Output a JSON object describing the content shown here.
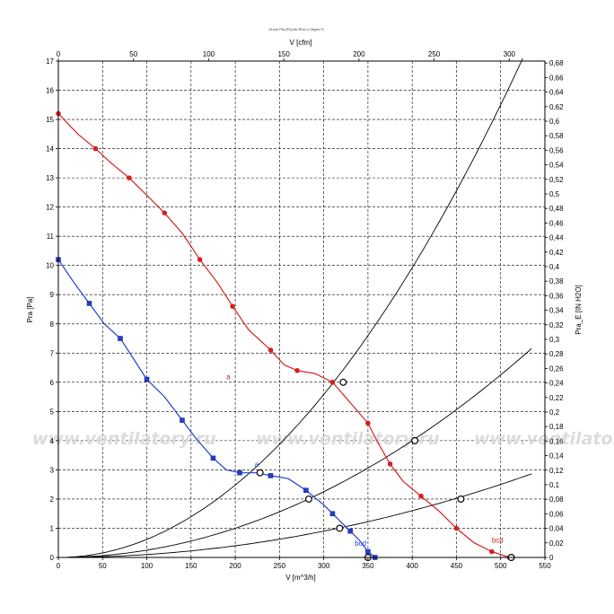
{
  "chart_data": {
    "type": "line",
    "title": "Druck Pra [Pa] für Rho=1.2kg/m^3",
    "xlabel": "V [m^3/h]",
    "x2label": "V [cfm]",
    "ylabel": "Pra [Pa]",
    "y2label": "Pra_E [IN H2O]",
    "xlim": [
      0,
      550
    ],
    "x2lim": [
      0,
      323.7
    ],
    "ylim": [
      0,
      170
    ],
    "y2lim": [
      0,
      0.6827
    ],
    "x_ticks": [
      "0",
      "50",
      "100",
      "150",
      "200",
      "250",
      "300",
      "350",
      "400",
      "450",
      "500",
      "550"
    ],
    "x2_ticks": [
      "0",
      "50",
      "100",
      "150",
      "200",
      "250",
      "300"
    ],
    "y_ticks": [
      "0",
      "1",
      "2",
      "3",
      "4",
      "5",
      "6",
      "7",
      "8",
      "9",
      "10",
      "11",
      "12",
      "13",
      "14",
      "15",
      "16",
      "17"
    ],
    "y_tick_values": [
      0,
      10,
      20,
      30,
      40,
      50,
      60,
      70,
      80,
      90,
      100,
      110,
      120,
      130,
      140,
      150,
      160,
      170
    ],
    "y_tick_labels": [
      "0",
      "1",
      "2",
      "3",
      "4",
      "5",
      "6",
      "7",
      "8",
      "9",
      "10",
      "11",
      "12",
      "13",
      "14",
      "15",
      "16",
      "17"
    ],
    "y2_ticks": [
      "0",
      "0,02",
      "0,04",
      "0,06",
      "0,08",
      "0,1",
      "0,12",
      "0,14",
      "0,16",
      "0,18",
      "0,2",
      "0,22",
      "0,24",
      "0,26",
      "0,28",
      "0,3",
      "0,32",
      "0,34",
      "0,36",
      "0,38",
      "0,4",
      "0,42",
      "0,44",
      "0,46",
      "0,48",
      "0,5",
      "0,52",
      "0,54",
      "0,56",
      "0,58",
      "0,6",
      "0,62",
      "0,64",
      "0,66",
      "0,68"
    ],
    "grid": true,
    "series": [
      {
        "color": "#d42020",
        "marker": "circle",
        "x": [
          0,
          22,
          42,
          60,
          80,
          100,
          120,
          140,
          160,
          180,
          197,
          215,
          240,
          255,
          270,
          290,
          310,
          330,
          350,
          360,
          375,
          390,
          410,
          430,
          450,
          470,
          490,
          510
        ],
        "y": [
          152,
          145,
          140,
          135,
          130,
          124,
          118,
          111,
          102,
          94,
          86,
          78,
          71,
          66,
          64,
          63,
          60,
          53,
          46,
          40,
          32,
          26,
          21,
          16,
          10,
          5,
          2,
          0
        ]
      },
      {
        "color": "#1f3fd0",
        "marker": "square",
        "x": [
          0,
          18,
          35,
          52,
          70,
          85,
          100,
          120,
          140,
          155,
          175,
          190,
          205,
          225,
          240,
          260,
          280,
          300,
          310,
          320,
          330,
          340,
          350,
          358
        ],
        "y": [
          102,
          94,
          87,
          80,
          75,
          68,
          61,
          55,
          47,
          41,
          34,
          30,
          29,
          29,
          28,
          27,
          23,
          18,
          15,
          12,
          9,
          6,
          2,
          0
        ]
      }
    ],
    "point_labels": [
      {
        "text": "a",
        "x": 190,
        "y": 61,
        "color": "#d42020"
      },
      {
        "text": "bcd",
        "x": 490,
        "y": 5,
        "color": "#d42020"
      },
      {
        "text": "a",
        "x": 222,
        "y": 31,
        "color": "#1f3fd0"
      },
      {
        "text": "bcd",
        "x": 335,
        "y": 4,
        "color": "#1f3fd0"
      }
    ],
    "system_curves": [
      {
        "k": 0.00062,
        "xmax": 525
      },
      {
        "k": 0.00025,
        "xmax": 535
      },
      {
        "k": 0.0001,
        "xmax": 535
      }
    ],
    "operating_points": [
      {
        "x": 228,
        "y": 29
      },
      {
        "x": 283,
        "y": 20
      },
      {
        "x": 318,
        "y": 10
      },
      {
        "x": 350,
        "y": 0
      },
      {
        "x": 322,
        "y": 60
      },
      {
        "x": 403,
        "y": 40
      },
      {
        "x": 455,
        "y": 20
      },
      {
        "x": 512,
        "y": 0
      }
    ]
  },
  "watermark": "www.ventilatory.ru"
}
